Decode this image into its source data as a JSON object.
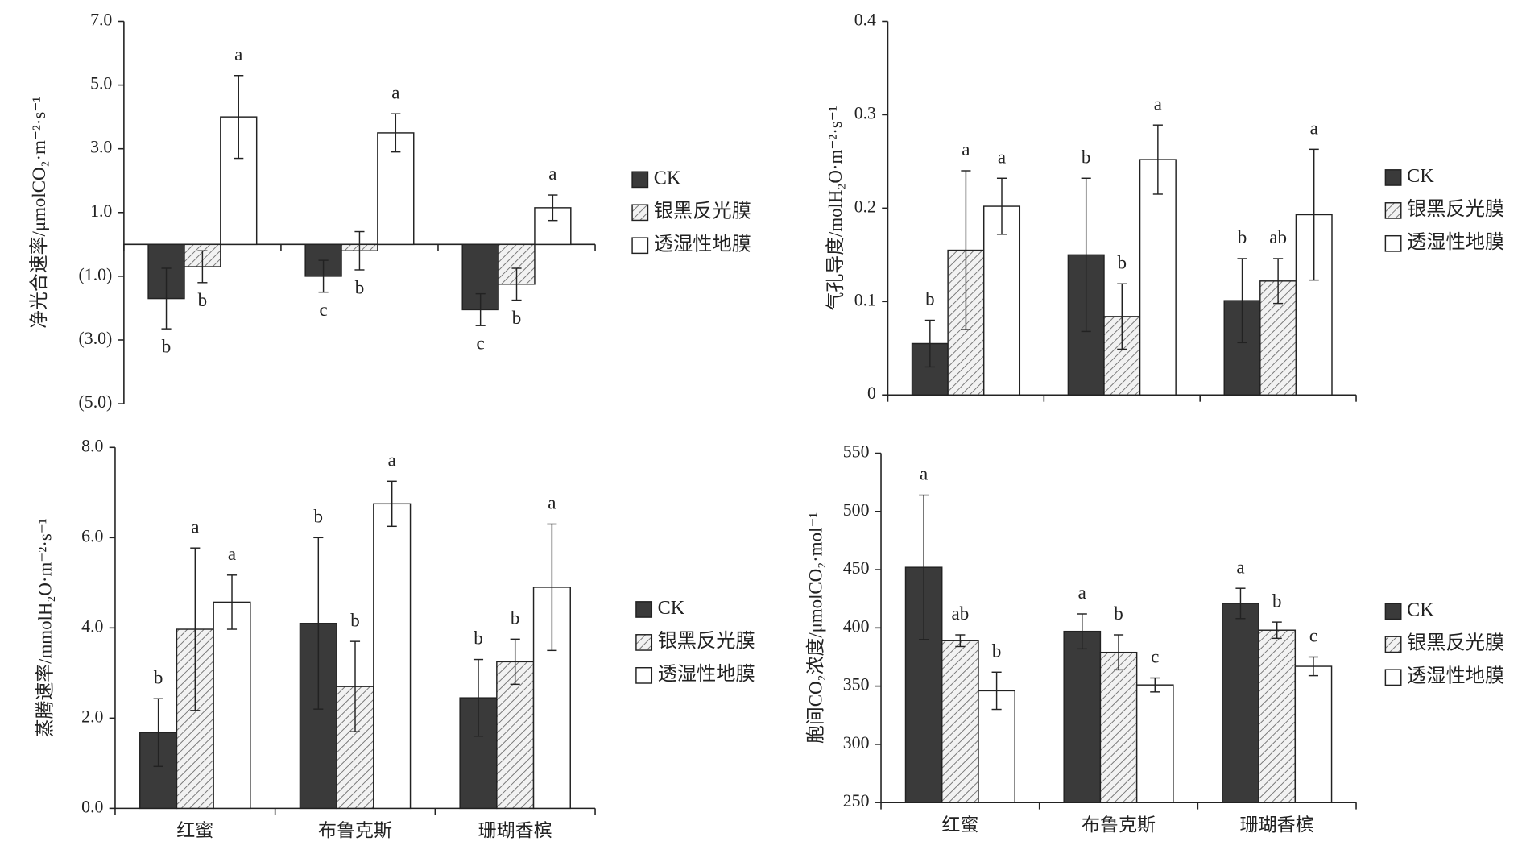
{
  "chart_data": [
    {
      "type": "bar",
      "ylabel": "净光合速率/μmolCO₂·m⁻²·s⁻¹",
      "categories": [
        null,
        null,
        null
      ],
      "ylim": [
        -5,
        7
      ],
      "yticks": [
        {
          "value": -5,
          "label": "(5.0)"
        },
        {
          "value": -3,
          "label": "(3.0)"
        },
        {
          "value": -1,
          "label": "(1.0)"
        },
        {
          "value": 1,
          "label": "1.0"
        },
        {
          "value": 3,
          "label": "3.0"
        },
        {
          "value": 5,
          "label": "5.0"
        },
        {
          "value": 7,
          "label": "7.0"
        }
      ],
      "series": [
        {
          "name": "CK",
          "color": "#3a3a3a",
          "values": [
            -1.7,
            -1.0,
            -2.05
          ],
          "errors": [
            0.95,
            0.5,
            0.5
          ],
          "annotations": [
            "b",
            "c",
            "c"
          ]
        },
        {
          "name": "银黑反光膜",
          "color": "#9a9a9a",
          "pattern": "hatch",
          "values": [
            -0.7,
            -0.2,
            -1.25
          ],
          "errors": [
            0.5,
            0.6,
            0.5
          ],
          "annotations": [
            "b",
            "b",
            "b"
          ]
        },
        {
          "name": "透湿性地膜",
          "color": "#ffffff",
          "values": [
            4.0,
            3.5,
            1.15
          ],
          "errors": [
            1.3,
            0.6,
            0.4
          ],
          "annotations": [
            "a",
            "a",
            "a"
          ]
        }
      ]
    },
    {
      "type": "bar",
      "ylabel": "气孔导度/molH₂O·m⁻²·s⁻¹",
      "categories": [
        null,
        null,
        null
      ],
      "ylim": [
        0,
        0.4
      ],
      "yticks": [
        0,
        0.1,
        0.2,
        0.3,
        0.4
      ],
      "series": [
        {
          "name": "CK",
          "color": "#3a3a3a",
          "values": [
            0.055,
            0.15,
            0.101
          ],
          "errors": [
            0.025,
            0.082,
            0.045
          ],
          "annotations": [
            "b",
            "b",
            "b"
          ]
        },
        {
          "name": "银黑反光膜",
          "color": "#9a9a9a",
          "pattern": "hatch",
          "values": [
            0.155,
            0.084,
            0.122
          ],
          "errors": [
            0.085,
            0.035,
            0.024
          ],
          "annotations": [
            "a",
            "b",
            "ab"
          ]
        },
        {
          "name": "透湿性地膜",
          "color": "#ffffff",
          "values": [
            0.202,
            0.252,
            0.193
          ],
          "errors": [
            0.03,
            0.037,
            0.07
          ],
          "annotations": [
            "a",
            "a",
            "a"
          ]
        }
      ]
    },
    {
      "type": "bar",
      "ylabel": "蒸腾速率/mmolH₂O·m⁻²·s⁻¹",
      "categories": [
        "红蜜",
        "布鲁克斯",
        "珊瑚香槟"
      ],
      "ylim": [
        0,
        8
      ],
      "yticks": [
        {
          "value": 0,
          "label": "0.0"
        },
        {
          "value": 2,
          "label": "2.0"
        },
        {
          "value": 4,
          "label": "4.0"
        },
        {
          "value": 6,
          "label": "6.0"
        },
        {
          "value": 8,
          "label": "8.0"
        }
      ],
      "series": [
        {
          "name": "CK",
          "color": "#3a3a3a",
          "values": [
            1.68,
            4.1,
            2.45
          ],
          "errors": [
            0.75,
            1.9,
            0.85
          ],
          "annotations": [
            "b",
            "b",
            "b"
          ]
        },
        {
          "name": "银黑反光膜",
          "color": "#9a9a9a",
          "pattern": "hatch",
          "values": [
            3.97,
            2.7,
            3.25
          ],
          "errors": [
            1.8,
            1.0,
            0.5
          ],
          "annotations": [
            "a",
            "b",
            "b"
          ]
        },
        {
          "name": "透湿性地膜",
          "color": "#ffffff",
          "values": [
            4.57,
            6.75,
            4.9
          ],
          "errors": [
            0.6,
            0.5,
            1.4
          ],
          "annotations": [
            "a",
            "a",
            "a"
          ]
        }
      ]
    },
    {
      "type": "bar",
      "ylabel": "胞间CO₂浓度/μmolCO₂·mol⁻¹",
      "categories": [
        "红蜜",
        "布鲁克斯",
        "珊瑚香槟"
      ],
      "ylim": [
        250,
        550
      ],
      "yticks": [
        250,
        300,
        350,
        400,
        450,
        500,
        550
      ],
      "series": [
        {
          "name": "CK",
          "color": "#3a3a3a",
          "values": [
            452,
            397,
            421
          ],
          "errors": [
            62,
            15,
            13
          ],
          "annotations": [
            "a",
            "a",
            "a"
          ]
        },
        {
          "name": "银黑反光膜",
          "color": "#9a9a9a",
          "pattern": "hatch",
          "values": [
            389,
            379,
            398
          ],
          "errors": [
            5,
            15,
            7
          ],
          "annotations": [
            "ab",
            "b",
            "b"
          ]
        },
        {
          "name": "透湿性地膜",
          "color": "#ffffff",
          "values": [
            346,
            351,
            367
          ],
          "errors": [
            16,
            6,
            8
          ],
          "annotations": [
            "b",
            "c",
            "c"
          ]
        }
      ]
    }
  ]
}
